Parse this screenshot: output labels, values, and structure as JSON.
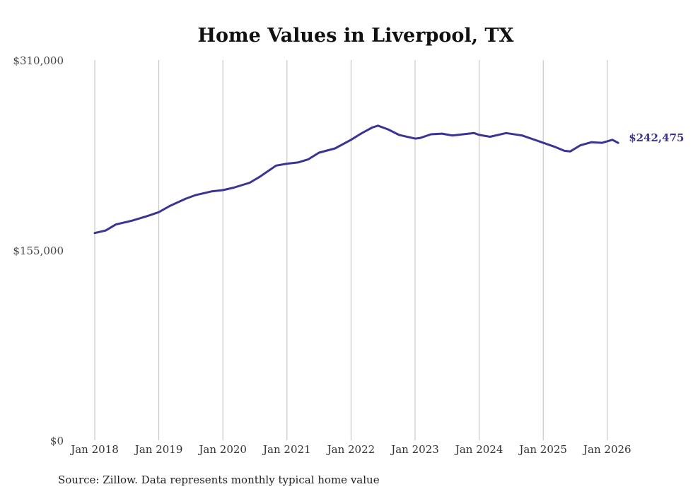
{
  "chart_data": {
    "type": "line",
    "title": "Home Values in Liverpool, TX",
    "source": "Source: Zillow. Data represents monthly typical home value",
    "xlabel": "",
    "ylabel": "",
    "ylim": [
      0,
      310000
    ],
    "y_ticks": [
      {
        "value": 0,
        "label": "$0"
      },
      {
        "value": 155000,
        "label": "$155,000"
      },
      {
        "value": 310000,
        "label": "$310,000"
      }
    ],
    "x_ticks": [
      {
        "value": 2018.0,
        "label": "Jan 2018"
      },
      {
        "value": 2019.0,
        "label": "Jan 2019"
      },
      {
        "value": 2020.0,
        "label": "Jan 2020"
      },
      {
        "value": 2021.0,
        "label": "Jan 2021"
      },
      {
        "value": 2022.0,
        "label": "Jan 2022"
      },
      {
        "value": 2023.0,
        "label": "Jan 2023"
      },
      {
        "value": 2024.0,
        "label": "Jan 2024"
      },
      {
        "value": 2025.0,
        "label": "Jan 2025"
      },
      {
        "value": 2026.0,
        "label": "Jan 2026"
      }
    ],
    "xlim": [
      2018.0,
      2026.2
    ],
    "grid": "vertical",
    "color": "#3a3494",
    "end_label": "$242,475",
    "series": [
      {
        "name": "Typical home value",
        "x": [
          2018.0,
          2018.17,
          2018.33,
          2018.58,
          2018.83,
          2019.0,
          2019.17,
          2019.42,
          2019.58,
          2019.83,
          2020.0,
          2020.17,
          2020.42,
          2020.58,
          2020.83,
          2021.0,
          2021.17,
          2021.33,
          2021.5,
          2021.75,
          2022.0,
          2022.17,
          2022.33,
          2022.42,
          2022.58,
          2022.75,
          2023.0,
          2023.08,
          2023.25,
          2023.42,
          2023.58,
          2023.75,
          2023.92,
          2024.0,
          2024.17,
          2024.42,
          2024.67,
          2024.92,
          2025.17,
          2025.33,
          2025.42,
          2025.58,
          2025.75,
          2025.92,
          2026.08,
          2026.17
        ],
        "y": [
          169000,
          171000,
          176000,
          179000,
          183000,
          186000,
          191000,
          197000,
          200000,
          203000,
          204000,
          206000,
          210000,
          215000,
          224000,
          225500,
          226500,
          229000,
          234500,
          238000,
          245000,
          250500,
          255000,
          256500,
          253500,
          249000,
          246000,
          246500,
          249500,
          250000,
          248500,
          249500,
          250500,
          249000,
          247500,
          250500,
          248500,
          244000,
          239500,
          236000,
          235500,
          240500,
          243000,
          242500,
          245000,
          242475
        ]
      }
    ]
  }
}
